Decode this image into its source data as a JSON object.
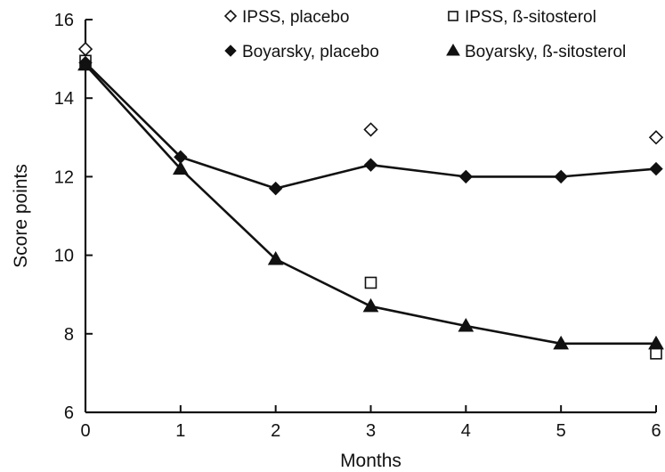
{
  "chart_data": {
    "type": "line",
    "title": "",
    "xlabel": "Months",
    "ylabel": "Score points",
    "x": [
      0,
      1,
      2,
      3,
      4,
      5,
      6
    ],
    "xlim": [
      0,
      6
    ],
    "ylim": [
      6,
      16
    ],
    "x_ticks": [
      0,
      1,
      2,
      3,
      4,
      5,
      6
    ],
    "y_ticks": [
      6,
      8,
      10,
      12,
      14,
      16
    ],
    "grid": false,
    "legend_position": "top",
    "series": [
      {
        "name": "IPSS, placebo",
        "marker": "open-diamond",
        "line": false,
        "x": [
          0,
          3,
          6
        ],
        "values": [
          15.25,
          13.2,
          13.0
        ]
      },
      {
        "name": "IPSS, ß-sitosterol",
        "marker": "open-square",
        "line": false,
        "x": [
          0,
          3,
          6
        ],
        "values": [
          14.95,
          9.3,
          7.5
        ]
      },
      {
        "name": "Boyarsky, placebo",
        "marker": "filled-diamond",
        "line": true,
        "x": [
          0,
          1,
          2,
          3,
          4,
          5,
          6
        ],
        "values": [
          14.9,
          12.5,
          11.7,
          12.3,
          12.0,
          12.0,
          12.2
        ]
      },
      {
        "name": "Boyarsky, ß-sitosterol",
        "marker": "filled-triangle",
        "line": true,
        "x": [
          0,
          1,
          2,
          3,
          4,
          5,
          6
        ],
        "values": [
          14.85,
          12.2,
          9.9,
          8.7,
          8.2,
          7.75,
          7.75
        ]
      }
    ]
  },
  "colors": {
    "ink": "#111111",
    "background": "#ffffff"
  }
}
